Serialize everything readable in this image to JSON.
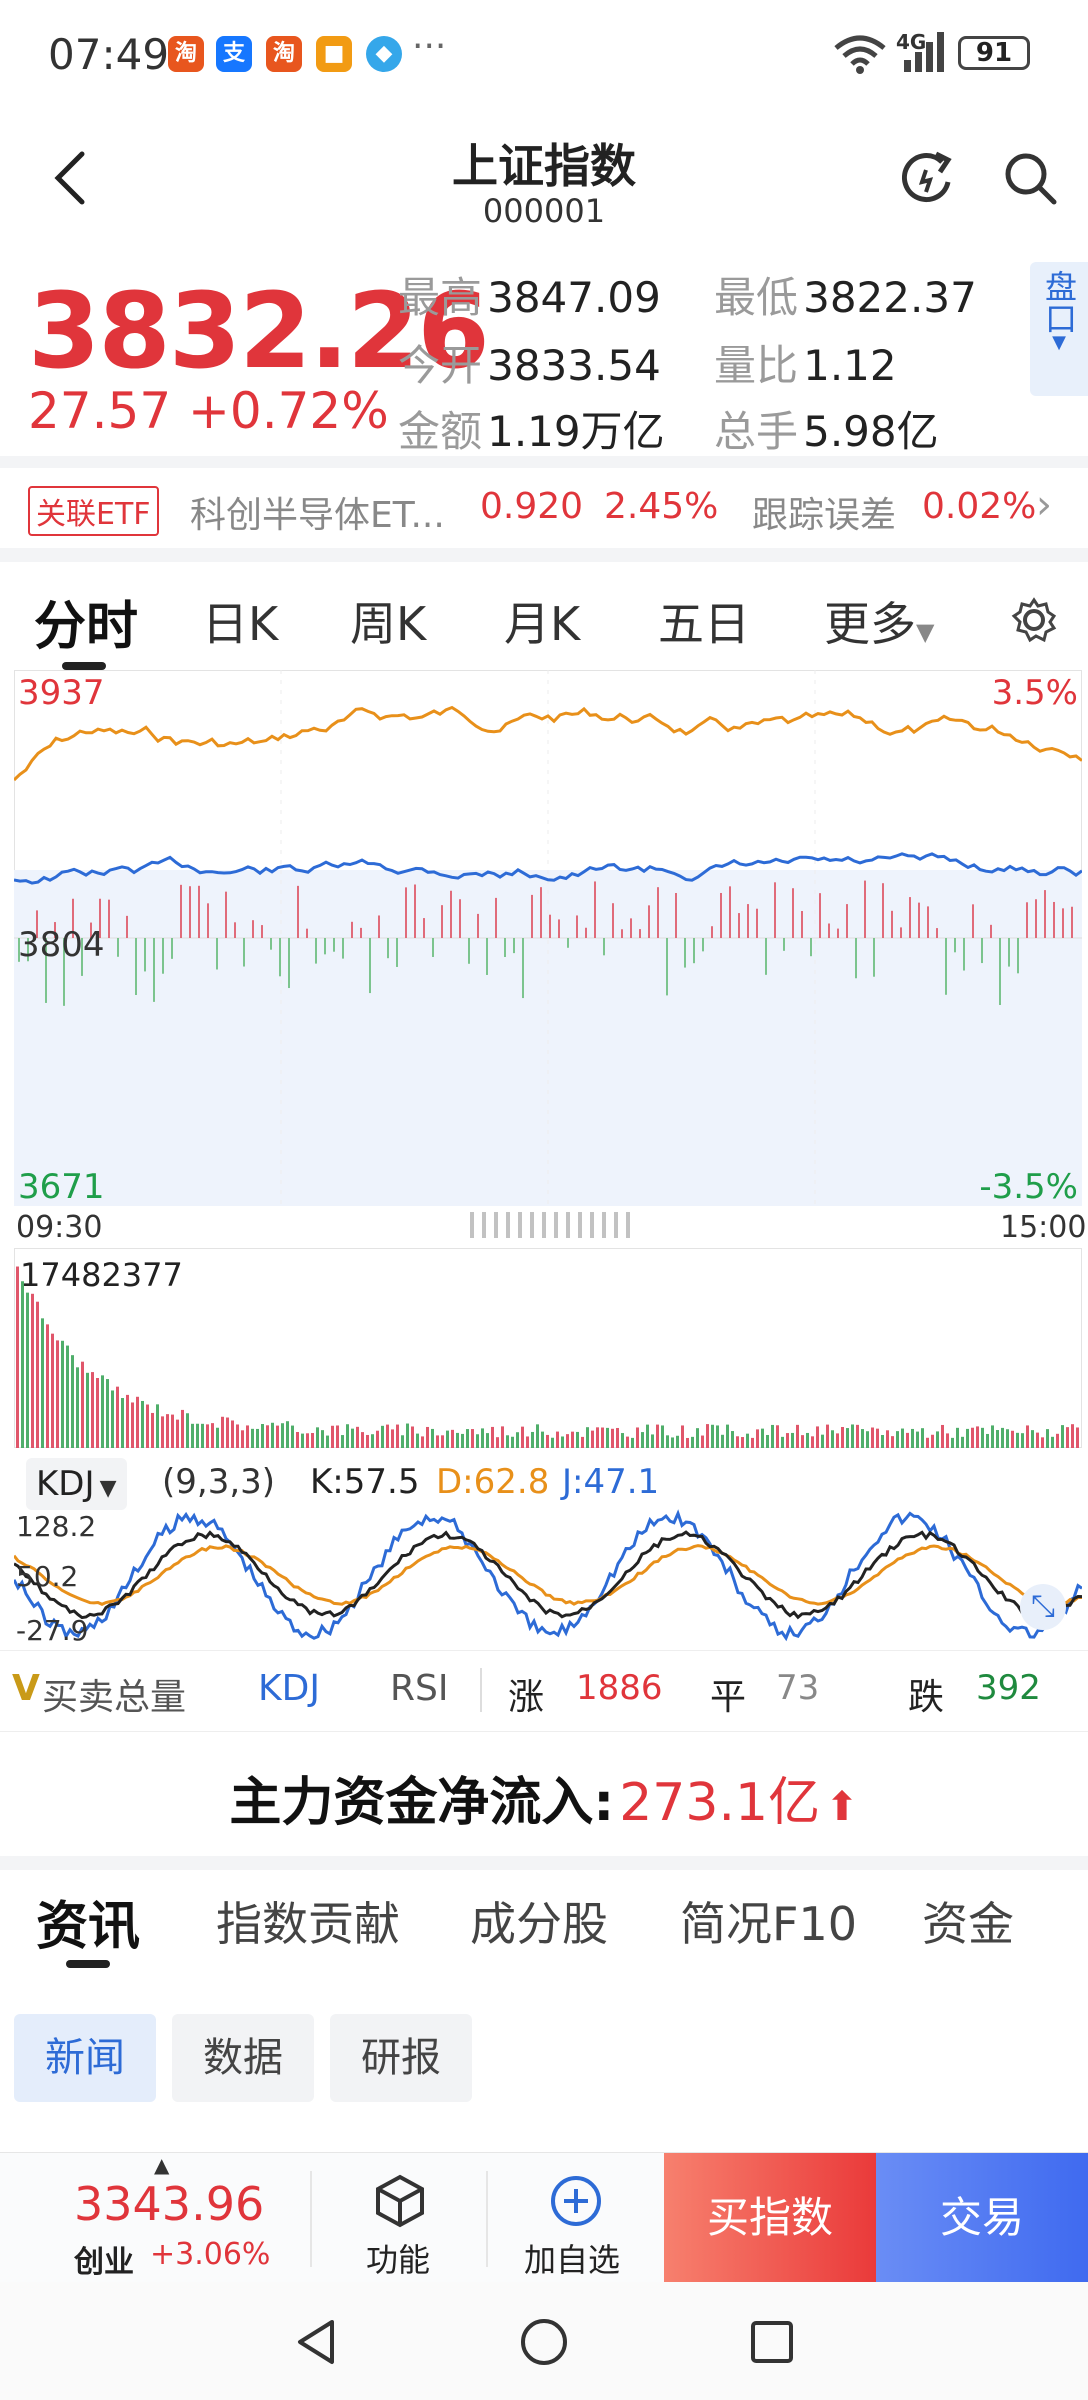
{
  "status_bar": {
    "time": "07:49",
    "apps": [
      {
        "name": "taobao-icon",
        "glyph": "淘",
        "color": "#e8561e"
      },
      {
        "name": "alipay-icon",
        "glyph": "支",
        "color": "#1677ff"
      },
      {
        "name": "taobao-icon-2",
        "glyph": "淘",
        "color": "#e8561e"
      },
      {
        "name": "app-box-icon",
        "glyph": "■",
        "color": "#f29b13"
      },
      {
        "name": "app-blue-icon",
        "glyph": "◆",
        "color": "#35a7ea"
      }
    ],
    "more": "···",
    "network": "4G",
    "battery": "91"
  },
  "header": {
    "title": "上证指数",
    "code": "000001",
    "back_icon": "chevron-left-icon",
    "refresh_icon": "refresh-icon",
    "search_icon": "search-icon"
  },
  "quote": {
    "price": "3832.26",
    "change": "27.57",
    "change_pct": "+0.72%",
    "fields": [
      {
        "label": "最高",
        "value": "3847.09"
      },
      {
        "label": "最低",
        "value": "3822.37"
      },
      {
        "label": "今开",
        "value": "3833.54"
      },
      {
        "label": "量比",
        "value": "1.12"
      },
      {
        "label": "金额",
        "value": "1.19万亿"
      },
      {
        "label": "总手",
        "value": "5.98亿"
      }
    ],
    "pankou": "盘口"
  },
  "etf": {
    "tag": "关联ETF",
    "name": "科创半导体ET...",
    "price": "0.920",
    "pct": "2.45%",
    "tracking_label": "跟踪误差",
    "tracking_value": "0.02%"
  },
  "chart_tabs": [
    "分时",
    "日K",
    "周K",
    "月K",
    "五日",
    "更多"
  ],
  "chart_data": {
    "type": "line",
    "y_max_label": "3937",
    "y_mid_label": "3804",
    "y_min_label": "3671",
    "pct_max_label": "3.5%",
    "pct_min_label": "-3.5%",
    "x_start": "09:30",
    "x_end": "15:00",
    "volume_max_label": "17482377",
    "series": [
      {
        "color": "#e8901a"
      },
      {
        "color": "#2d6bd6"
      }
    ]
  },
  "kdj": {
    "name": "KDJ",
    "params": "(9,3,3)",
    "k": "K:57.5",
    "d": "D:62.8",
    "j": "J:47.1",
    "y_labels": [
      "128.2",
      "50.2",
      "-27.9"
    ]
  },
  "indicator_bar": {
    "items": [
      "买卖总量",
      "KDJ",
      "RSI"
    ],
    "up_label": "涨",
    "up_value": "1886",
    "flat_label": "平",
    "flat_value": "73",
    "down_label": "跌",
    "down_value": "392"
  },
  "main_flow": {
    "label": "主力资金净流入:",
    "value": "273.1亿"
  },
  "news_tabs": [
    "资讯",
    "指数贡献",
    "成分股",
    "简况F10",
    "资金"
  ],
  "news_chips": [
    "新闻",
    "数据",
    "研报"
  ],
  "bottom_bar": {
    "ticker_price": "3343.96",
    "ticker_name": "创业",
    "ticker_pct": "+3.06%",
    "func_label": "功能",
    "add_label": "加自选",
    "buy_label": "买指数",
    "trade_label": "交易"
  }
}
